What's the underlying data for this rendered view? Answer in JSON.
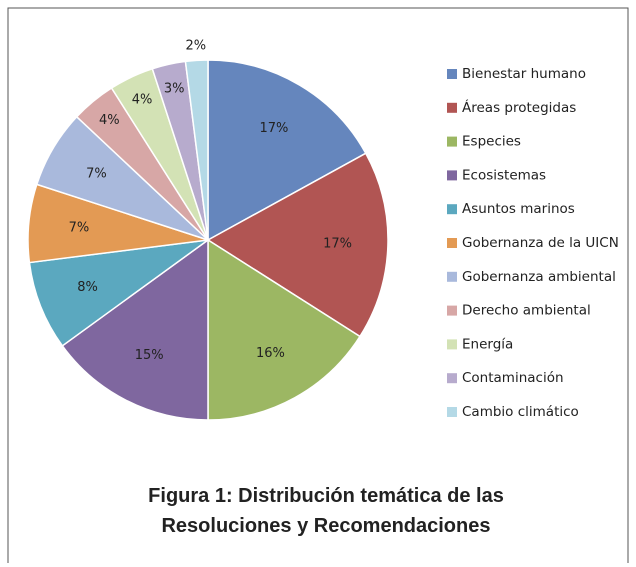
{
  "chart_data": {
    "type": "pie",
    "title": "Figura 1: Distribución temática de las Resoluciones y Recomendaciones",
    "categories": [
      "Bienestar humano",
      "Áreas protegidas",
      "Especies",
      "Ecosistemas",
      "Asuntos marinos",
      "Gobernanza de la UICN",
      "Gobernanza ambiental",
      "Derecho ambiental",
      "Energía",
      "Contaminación",
      "Cambio climático"
    ],
    "values": [
      17,
      17,
      16,
      15,
      8,
      7,
      7,
      4,
      4,
      3,
      2
    ],
    "value_labels": [
      "17%",
      "17%",
      "16%",
      "15%",
      "8%",
      "7%",
      "7%",
      "4%",
      "4%",
      "3%",
      "2%"
    ],
    "colors": [
      "#6586bd",
      "#b15553",
      "#9cb763",
      "#7f679f",
      "#5ba8bf",
      "#e39a54",
      "#a9b9dc",
      "#d7a7a6",
      "#d3e2b5",
      "#b7abcd",
      "#b4d9e6"
    ],
    "legend": "right"
  }
}
